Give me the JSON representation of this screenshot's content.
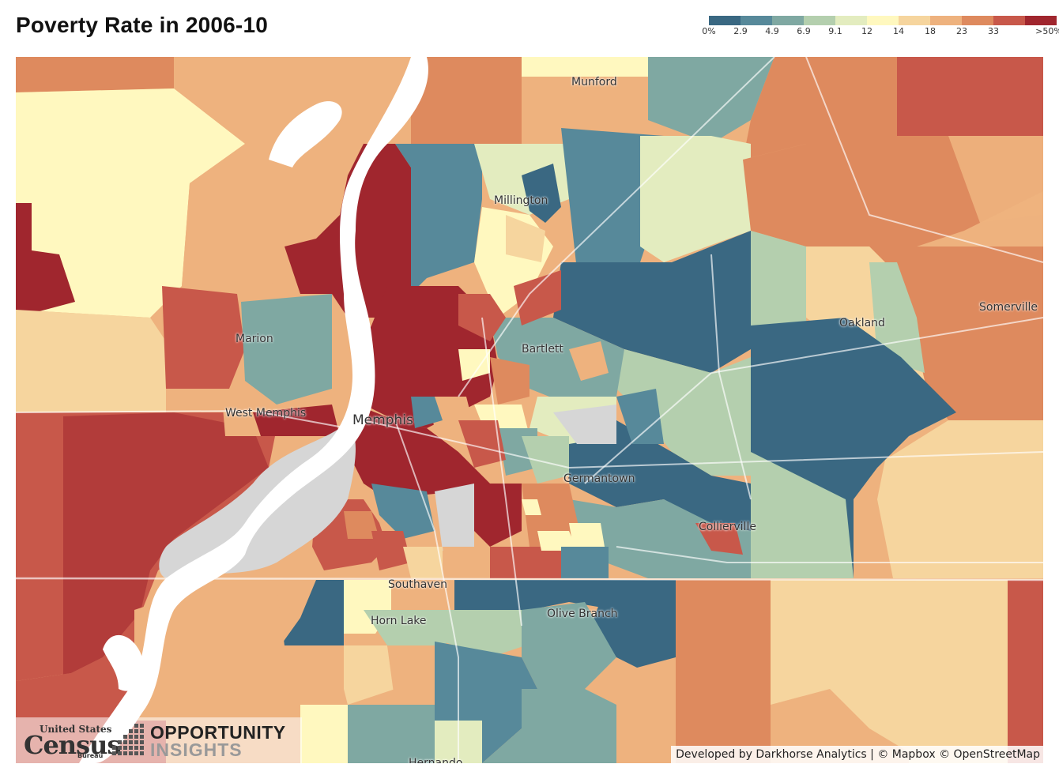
{
  "title": "Poverty Rate in 2006-10",
  "legend": {
    "colors": [
      "#3a6882",
      "#57899a",
      "#7fa8a2",
      "#b4cfae",
      "#e3ecbf",
      "#fff8bf",
      "#f6d59e",
      "#eeb27e",
      "#de8a5e",
      "#c8584a",
      "#a0262e"
    ],
    "labels": [
      "0%",
      "2.9",
      "4.9",
      "6.9",
      "9.1",
      "12",
      "14",
      "18",
      "23",
      "33",
      ">50%"
    ]
  },
  "places": [
    {
      "id": "munford",
      "name": "Munford"
    },
    {
      "id": "millington",
      "name": "Millington"
    },
    {
      "id": "marion",
      "name": "Marion"
    },
    {
      "id": "bartlett",
      "name": "Bartlett"
    },
    {
      "id": "oakland",
      "name": "Oakland"
    },
    {
      "id": "somerville",
      "name": "Somerville"
    },
    {
      "id": "west-memphis",
      "name": "West Memphis"
    },
    {
      "id": "memphis",
      "name": "Memphis"
    },
    {
      "id": "germantown",
      "name": "Germantown"
    },
    {
      "id": "collierville",
      "name": "Collierville"
    },
    {
      "id": "southaven",
      "name": "Southaven"
    },
    {
      "id": "olive-branch",
      "name": "Olive Branch"
    },
    {
      "id": "horn-lake",
      "name": "Horn Lake"
    },
    {
      "id": "hernando",
      "name": "Hernando"
    }
  ],
  "logos": {
    "census_line1": "United States",
    "census_line2": "Census",
    "census_line3": "Bureau",
    "oi_line1": "OPPORTUNITY",
    "oi_line2": "INSIGHTS"
  },
  "attribution": "Developed by Darkhorse Analytics | © Mapbox © OpenStreetMap"
}
